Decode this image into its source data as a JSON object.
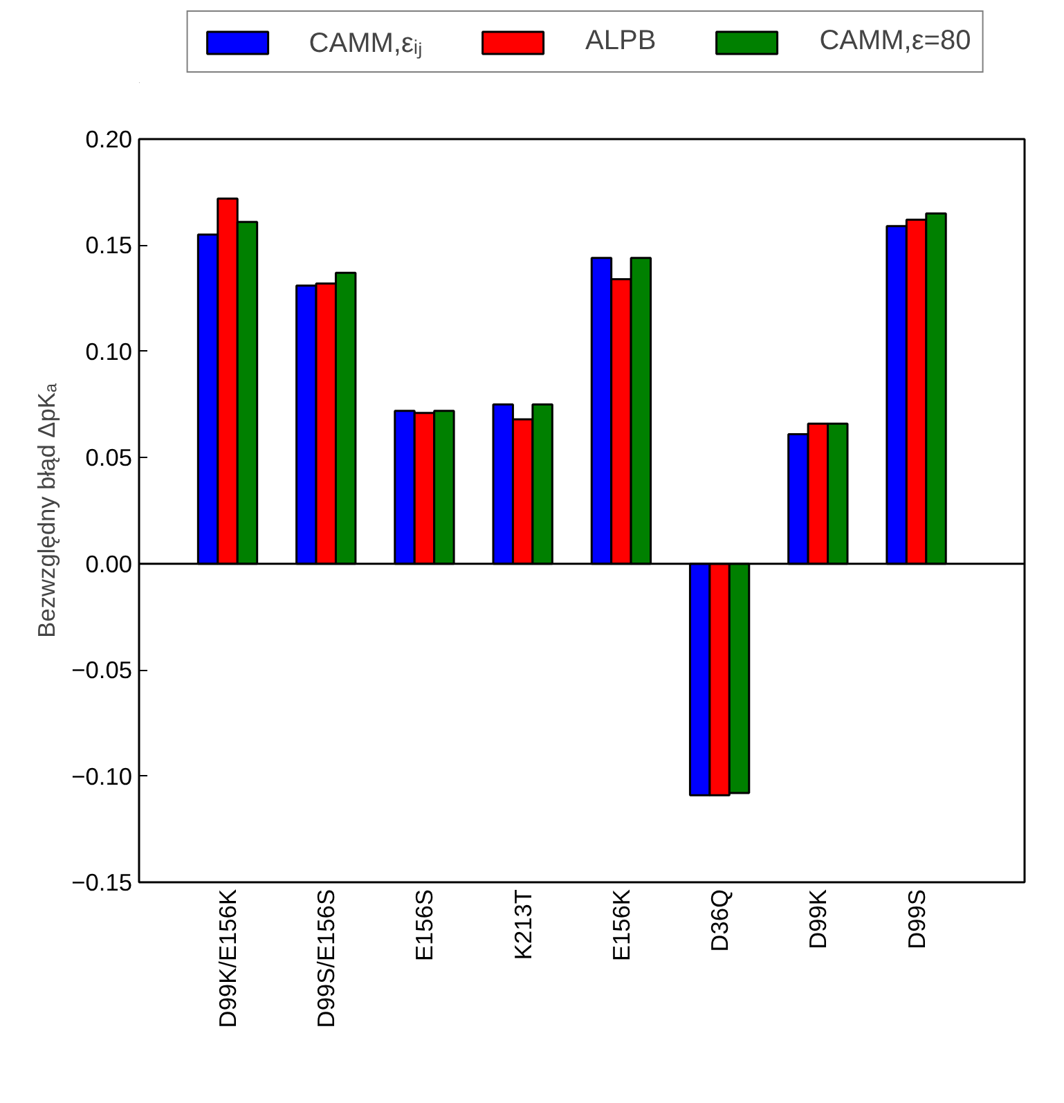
{
  "chart_data": {
    "type": "bar",
    "ylabel": "Bezwzględny błąd ΔpKₐ",
    "categories": [
      "D99K/E156K",
      "D99S/E156S",
      "E156S",
      "K213T",
      "E156K",
      "D36Q",
      "D99K",
      "D99S"
    ],
    "series": [
      {
        "name": "CAMM,εᵢⱼ",
        "color": "#0000ff",
        "values": [
          0.155,
          0.131,
          0.072,
          0.075,
          0.144,
          -0.109,
          0.061,
          0.159
        ]
      },
      {
        "name": "ALPB",
        "color": "#ff0000",
        "values": [
          0.172,
          0.132,
          0.071,
          0.068,
          0.134,
          -0.109,
          0.066,
          0.162
        ]
      },
      {
        "name": "CAMM,ε=80",
        "color": "#008000",
        "values": [
          0.161,
          0.137,
          0.072,
          0.075,
          0.144,
          -0.108,
          0.066,
          0.165
        ]
      }
    ],
    "ylim": [
      -0.15,
      0.2
    ],
    "yticks": [
      {
        "value": -0.15,
        "label": "−0.15"
      },
      {
        "value": -0.1,
        "label": "−0.10"
      },
      {
        "value": -0.05,
        "label": "−0.05"
      },
      {
        "value": 0,
        "label": "0.00"
      },
      {
        "value": 0.05,
        "label": "0.05"
      },
      {
        "value": 0.1,
        "label": "0.10"
      },
      {
        "value": 0.15,
        "label": "0.15"
      },
      {
        "value": 0.2,
        "label": "0.20"
      }
    ],
    "ref_lines": [
      {
        "axis": "y",
        "value": 0,
        "color": "#000000"
      }
    ],
    "grid": false,
    "legend": "top"
  }
}
